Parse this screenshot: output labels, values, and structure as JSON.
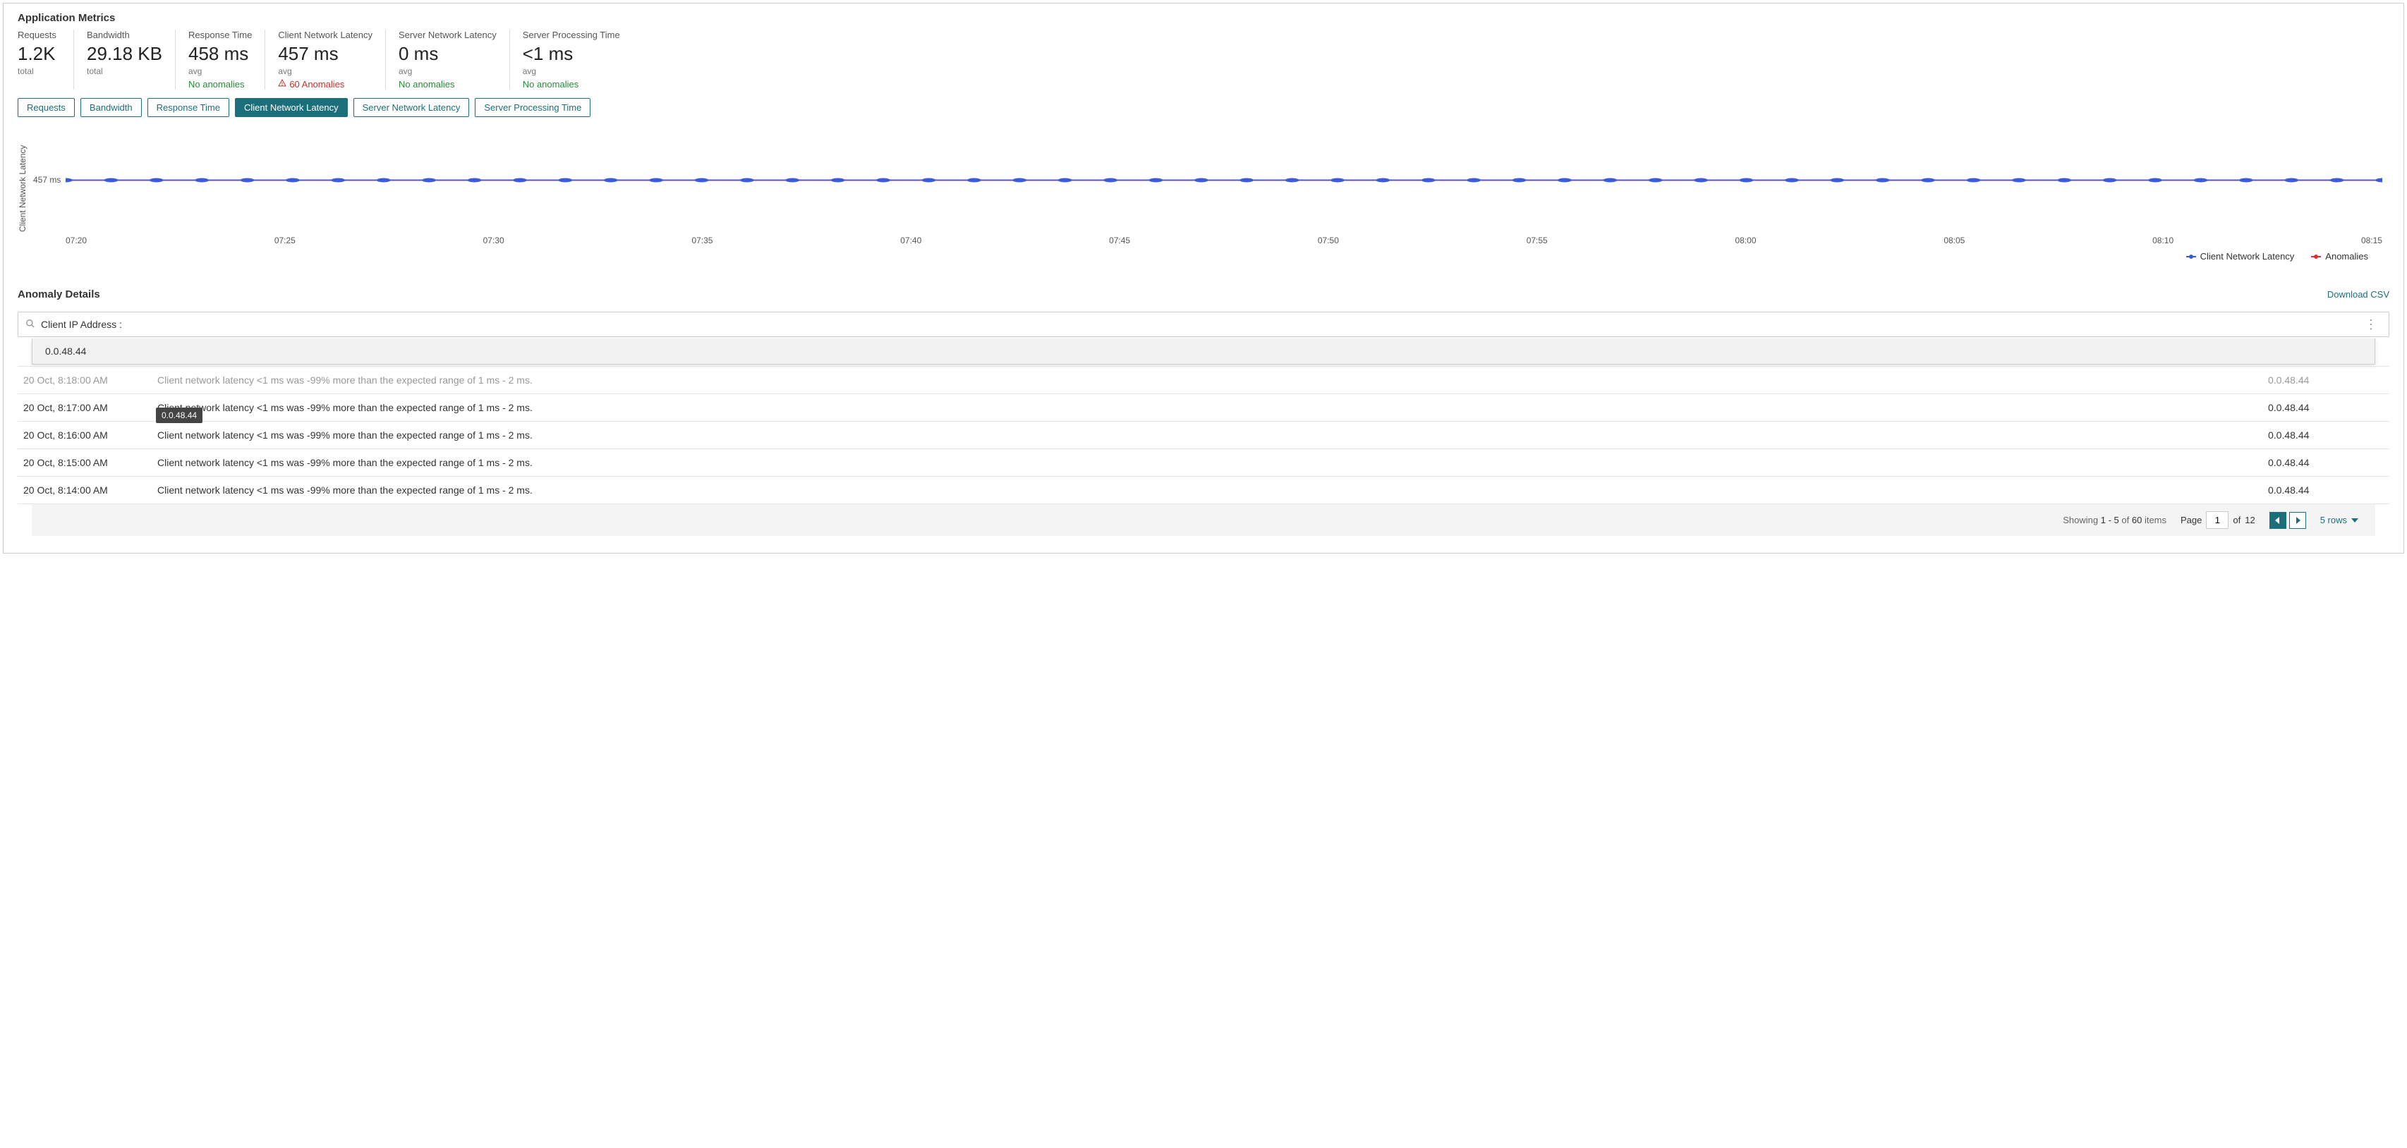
{
  "title": "Application Metrics",
  "metrics": [
    {
      "label": "Requests",
      "value": "1.2K",
      "sub": "total",
      "status": null,
      "wide": false
    },
    {
      "label": "Bandwidth",
      "value": "29.18 KB",
      "sub": "total",
      "status": null,
      "wide": false
    },
    {
      "label": "Response Time",
      "value": "458 ms",
      "sub": "avg",
      "status": "ok",
      "status_text": "No anomalies",
      "wide": false
    },
    {
      "label": "Client Network Latency",
      "value": "457 ms",
      "sub": "avg",
      "status": "warn",
      "status_text": "60 Anomalies",
      "wide": true
    },
    {
      "label": "Server Network Latency",
      "value": "0 ms",
      "sub": "avg",
      "status": "ok",
      "status_text": "No anomalies",
      "wide": true
    },
    {
      "label": "Server Processing Time",
      "value": "<1 ms",
      "sub": "avg",
      "status": "ok",
      "status_text": "No anomalies",
      "wide": true
    }
  ],
  "tabs": [
    {
      "label": "Requests",
      "active": false
    },
    {
      "label": "Bandwidth",
      "active": false
    },
    {
      "label": "Response Time",
      "active": false
    },
    {
      "label": "Client Network Latency",
      "active": true
    },
    {
      "label": "Server Network Latency",
      "active": false
    },
    {
      "label": "Server Processing Time",
      "active": false
    }
  ],
  "chart": {
    "y_axis_label": "Client Network Latency",
    "y_tick": "457 ms",
    "x_ticks": [
      "07:20",
      "07:25",
      "07:30",
      "07:35",
      "07:40",
      "07:45",
      "07:50",
      "07:55",
      "08:00",
      "08:05",
      "08:10",
      "08:15"
    ],
    "series": [
      {
        "name": "Client Network Latency",
        "color": "#3b5bdb",
        "marker_color": "#3b5bdb",
        "value": 457,
        "type": "line-markers"
      },
      {
        "name": "Anomalies",
        "color": "#e03131",
        "marker_color": "#e03131",
        "value": 457,
        "type": "line-markers"
      }
    ],
    "point_count": 52,
    "num_points": 52,
    "ylim": [
      0,
      914
    ],
    "background_color": "#ffffff"
  },
  "legend": [
    {
      "label": "Client Network Latency",
      "color": "#3b5bdb"
    },
    {
      "label": "Anomalies",
      "color": "#e03131"
    }
  ],
  "anomaly_section": {
    "title": "Anomaly Details",
    "download_label": "Download CSV",
    "search_value": "Client IP Address : ",
    "dropdown_option": "0.0.48.44",
    "tooltip": "0.0.48.44"
  },
  "table": {
    "rows": [
      {
        "time": "20 Oct, 8:18:00 AM",
        "desc": "Client network latency <1 ms was -99% more than the expected range of 1 ms - 2 ms.",
        "ip": "0.0.48.44",
        "dimmed": true
      },
      {
        "time": "20 Oct, 8:17:00 AM",
        "desc": "Client network latency <1 ms was -99% more than the expected range of 1 ms - 2 ms.",
        "ip": "0.0.48.44",
        "dimmed": false
      },
      {
        "time": "20 Oct, 8:16:00 AM",
        "desc": "Client network latency <1 ms was -99% more than the expected range of 1 ms - 2 ms.",
        "ip": "0.0.48.44",
        "dimmed": false
      },
      {
        "time": "20 Oct, 8:15:00 AM",
        "desc": "Client network latency <1 ms was -99% more than the expected range of 1 ms - 2 ms.",
        "ip": "0.0.48.44",
        "dimmed": false
      },
      {
        "time": "20 Oct, 8:14:00 AM",
        "desc": "Client network latency <1 ms was -99% more than the expected range of 1 ms - 2 ms.",
        "ip": "0.0.48.44",
        "dimmed": false
      }
    ]
  },
  "pager": {
    "showing_prefix": "Showing",
    "range": "1 - 5",
    "of_word": "of",
    "total": "60",
    "items_word": "items",
    "page_word": "Page",
    "page_value": "1",
    "of_pages_word": "of",
    "total_pages": "12",
    "rows_label": "5 rows"
  },
  "colors": {
    "accent": "#1b6f7a",
    "ok": "#2a8a3a",
    "warn": "#c9302c",
    "series1": "#3b5bdb",
    "series2": "#e03131"
  }
}
